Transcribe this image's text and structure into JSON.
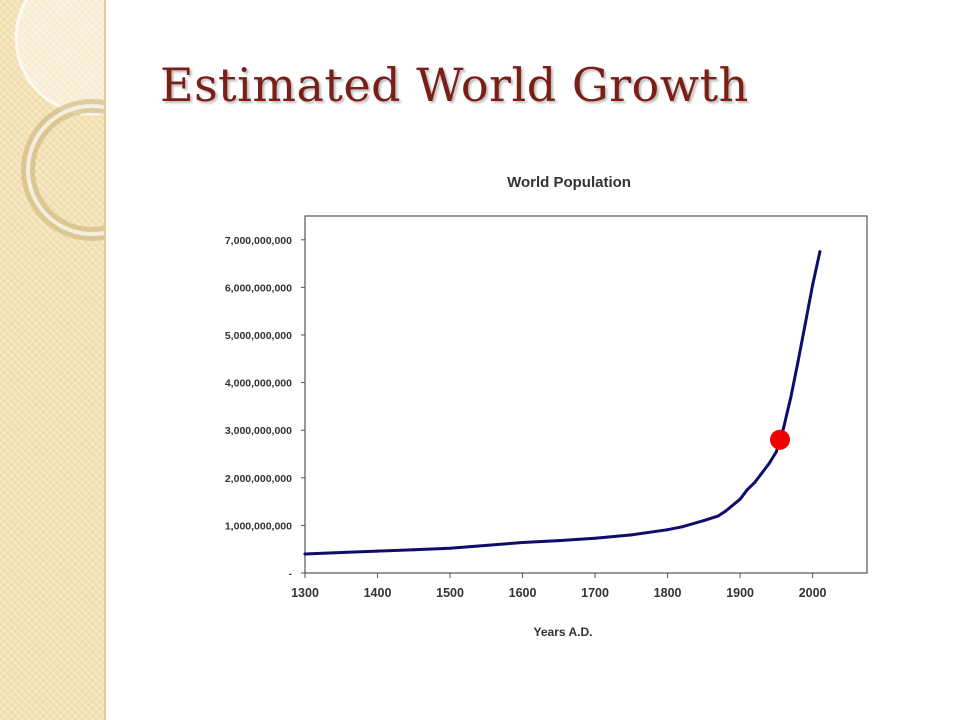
{
  "slide": {
    "title": "Estimated World Growth"
  },
  "chart_data": {
    "type": "line",
    "title": "World Population",
    "xlabel": "Years A.D.",
    "ylabel": "",
    "xlim": [
      1300,
      2075
    ],
    "ylim": [
      0,
      7500000000
    ],
    "x_ticks": [
      1300,
      1400,
      1500,
      1600,
      1700,
      1800,
      1900,
      2000
    ],
    "x_tick_labels": [
      "1300",
      "1400",
      "1500",
      "1600",
      "1700",
      "1800",
      "1900",
      "2000"
    ],
    "y_ticks": [
      0,
      1000000000,
      2000000000,
      3000000000,
      4000000000,
      5000000000,
      6000000000,
      7000000000
    ],
    "y_tick_labels": [
      "-",
      "1,000,000,000",
      "2,000,000,000",
      "3,000,000,000",
      "4,000,000,000",
      "5,000,000,000",
      "6,000,000,000",
      "7,000,000,000"
    ],
    "grid": false,
    "legend": "none",
    "series": [
      {
        "color": "#0d0d6b",
        "x": [
          1300,
          1350,
          1400,
          1450,
          1500,
          1550,
          1600,
          1650,
          1700,
          1750,
          1800,
          1820,
          1850,
          1870,
          1880,
          1900,
          1910,
          1920,
          1930,
          1940,
          1950,
          1960,
          1970,
          1980,
          1990,
          2000,
          2010
        ],
        "y": [
          400000000,
          430000000,
          460000000,
          490000000,
          520000000,
          580000000,
          640000000,
          680000000,
          730000000,
          800000000,
          910000000,
          970000000,
          1100000000,
          1200000000,
          1300000000,
          1550000000,
          1750000000,
          1900000000,
          2100000000,
          2300000000,
          2550000000,
          3050000000,
          3700000000,
          4450000000,
          5250000000,
          6050000000,
          6750000000
        ]
      }
    ],
    "highlight_point": {
      "x": 1955,
      "y": 2800000000,
      "color": "#ee0000"
    }
  }
}
